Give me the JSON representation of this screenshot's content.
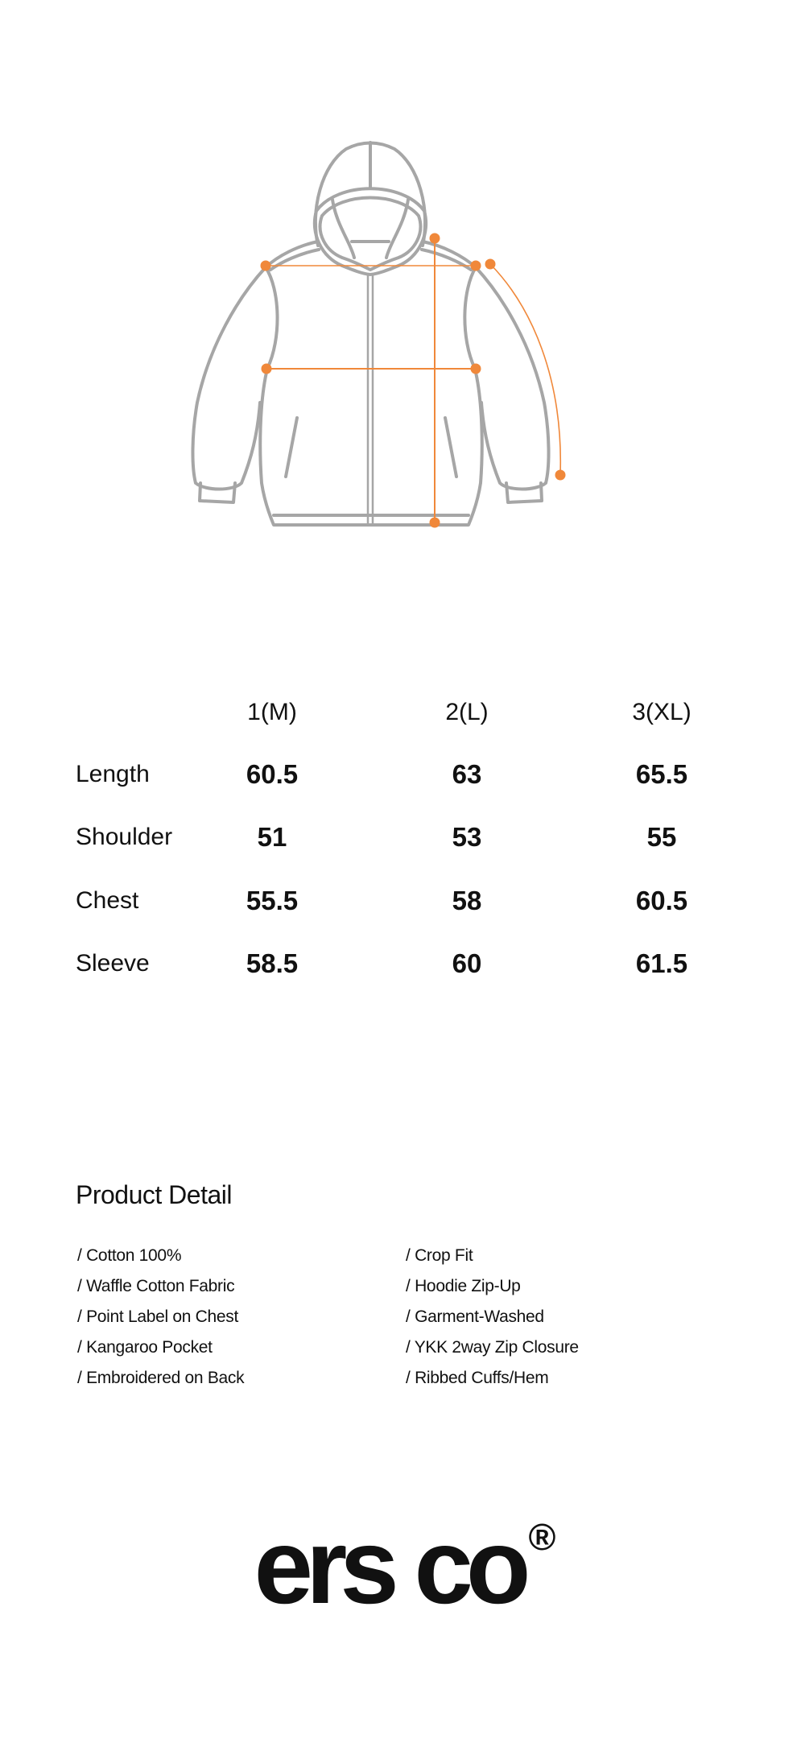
{
  "colors": {
    "outline": "#a6a6a6",
    "measure": "#f0883a",
    "text": "#111111"
  },
  "illustration": {
    "subject": "hoodie zip-up flat sketch",
    "measurements_marked": [
      "Length",
      "Shoulder",
      "Chest",
      "Sleeve"
    ]
  },
  "size_table": {
    "columns": [
      "1(M)",
      "2(L)",
      "3(XL)"
    ],
    "rows": [
      {
        "label": "Length",
        "values": [
          "60.5",
          "63",
          "65.5"
        ]
      },
      {
        "label": "Shoulder",
        "values": [
          "51",
          "53",
          "55"
        ]
      },
      {
        "label": "Chest",
        "values": [
          "55.5",
          "58",
          "60.5"
        ]
      },
      {
        "label": "Sleeve",
        "values": [
          "58.5",
          "60",
          "61.5"
        ]
      }
    ]
  },
  "product_detail": {
    "title": "Product Detail",
    "left": [
      "/ Cotton 100%",
      "/ Waffle Cotton Fabric",
      "/ Point Label on Chest",
      "/ Kangaroo Pocket",
      "/ Embroidered on Back"
    ],
    "right": [
      "/ Crop Fit",
      "/ Hoodie Zip-Up",
      "/ Garment-Washed",
      "/ YKK 2way Zip Closure",
      "/ Ribbed Cuffs/Hem"
    ]
  },
  "logo": {
    "text": "ers co",
    "mark": "®"
  }
}
